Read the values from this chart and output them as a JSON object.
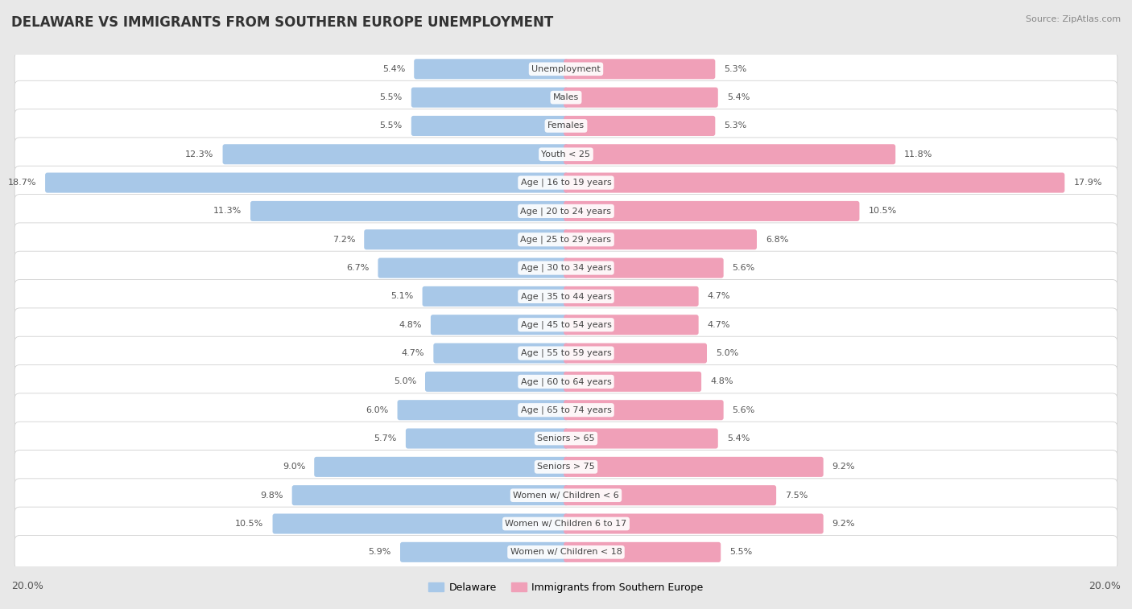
{
  "title": "DELAWARE VS IMMIGRANTS FROM SOUTHERN EUROPE UNEMPLOYMENT",
  "source": "Source: ZipAtlas.com",
  "categories": [
    "Unemployment",
    "Males",
    "Females",
    "Youth < 25",
    "Age | 16 to 19 years",
    "Age | 20 to 24 years",
    "Age | 25 to 29 years",
    "Age | 30 to 34 years",
    "Age | 35 to 44 years",
    "Age | 45 to 54 years",
    "Age | 55 to 59 years",
    "Age | 60 to 64 years",
    "Age | 65 to 74 years",
    "Seniors > 65",
    "Seniors > 75",
    "Women w/ Children < 6",
    "Women w/ Children 6 to 17",
    "Women w/ Children < 18"
  ],
  "delaware": [
    5.4,
    5.5,
    5.5,
    12.3,
    18.7,
    11.3,
    7.2,
    6.7,
    5.1,
    4.8,
    4.7,
    5.0,
    6.0,
    5.7,
    9.0,
    9.8,
    10.5,
    5.9
  ],
  "immigrants": [
    5.3,
    5.4,
    5.3,
    11.8,
    17.9,
    10.5,
    6.8,
    5.6,
    4.7,
    4.7,
    5.0,
    4.8,
    5.6,
    5.4,
    9.2,
    7.5,
    9.2,
    5.5
  ],
  "delaware_color": "#a8c8e8",
  "immigrants_color": "#f0a0b8",
  "bg_color": "#e8e8e8",
  "row_color": "#f5f5f5",
  "axis_max": 20.0,
  "legend_delaware": "Delaware",
  "legend_immigrants": "Immigrants from Southern Europe",
  "title_fontsize": 12,
  "source_fontsize": 8,
  "label_fontsize": 8,
  "cat_fontsize": 8
}
